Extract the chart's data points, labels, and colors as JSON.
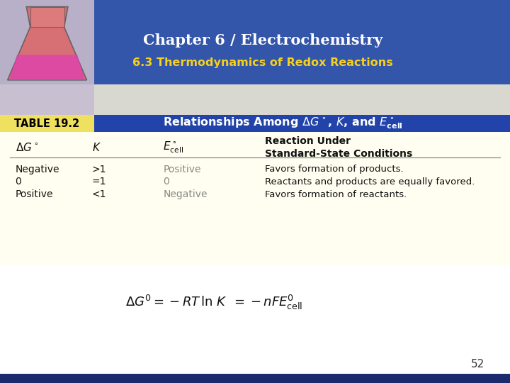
{
  "title": "Chapter 6 / Electrochemistry",
  "subtitle": "6.3 Thermodynamics of Redox Reactions",
  "header_bg": "#3355aa",
  "subtitle_color": "#f5d020",
  "title_color": "#ffffff",
  "table_label": "TABLE 19.2",
  "table_label_bg": "#f0e060",
  "table_label_color": "#000000",
  "table_header_bg": "#2244aa",
  "table_header_color": "#ffffff",
  "table_bg": "#fffef0",
  "rows": [
    [
      "Negative",
      ">1",
      "Positive",
      "Favors formation of products."
    ],
    [
      "0",
      "=1",
      "0",
      "Reactants and products are equally favored."
    ],
    [
      "Positive",
      "<1",
      "Negative",
      "Favors formation of reactants."
    ]
  ],
  "page_number": "52",
  "slide_bg": "#ffffff",
  "bottom_bar_color": "#1a2a6c"
}
